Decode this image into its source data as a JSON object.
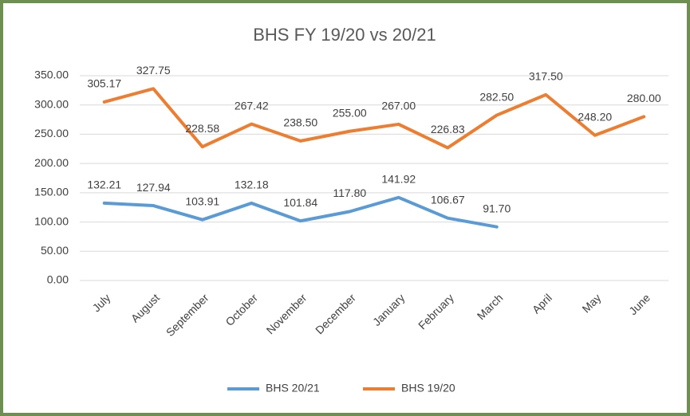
{
  "chart_data": {
    "type": "line",
    "title": "BHS FY 19/20 vs 20/21",
    "categories": [
      "July",
      "August",
      "September",
      "October",
      "November",
      "December",
      "January",
      "February",
      "March",
      "April",
      "May",
      "June"
    ],
    "series": [
      {
        "name": "BHS 20/21",
        "color": "#5b9bd5",
        "values": [
          132.21,
          127.94,
          103.91,
          132.18,
          101.84,
          117.8,
          141.92,
          106.67,
          91.7,
          null,
          null,
          null
        ],
        "value_labels": [
          "132.21",
          "127.94",
          "103.91",
          "132.18",
          "101.84",
          "117.80",
          "141.92",
          "106.67",
          "91.70",
          null,
          null,
          null
        ]
      },
      {
        "name": "BHS 19/20",
        "color": "#ed7d31",
        "values": [
          305.17,
          327.75,
          228.58,
          267.42,
          238.5,
          255.0,
          267.0,
          226.83,
          282.5,
          317.5,
          248.2,
          280.0
        ],
        "value_labels": [
          "305.17",
          "327.75",
          "228.58",
          "267.42",
          "238.50",
          "255.00",
          "267.00",
          "226.83",
          "282.50",
          "317.50",
          "248.20",
          "280.00"
        ]
      }
    ],
    "ylim": [
      0,
      350
    ],
    "yticks": [
      {
        "value": 0,
        "label": "0.00"
      },
      {
        "value": 50,
        "label": "50.00"
      },
      {
        "value": 100,
        "label": "100.00"
      },
      {
        "value": 150,
        "label": "150.00"
      },
      {
        "value": 200,
        "label": "200.00"
      },
      {
        "value": 250,
        "label": "250.00"
      },
      {
        "value": 300,
        "label": "300.00"
      },
      {
        "value": 350,
        "label": "350.00"
      }
    ],
    "grid": true,
    "legend": "bottom"
  }
}
